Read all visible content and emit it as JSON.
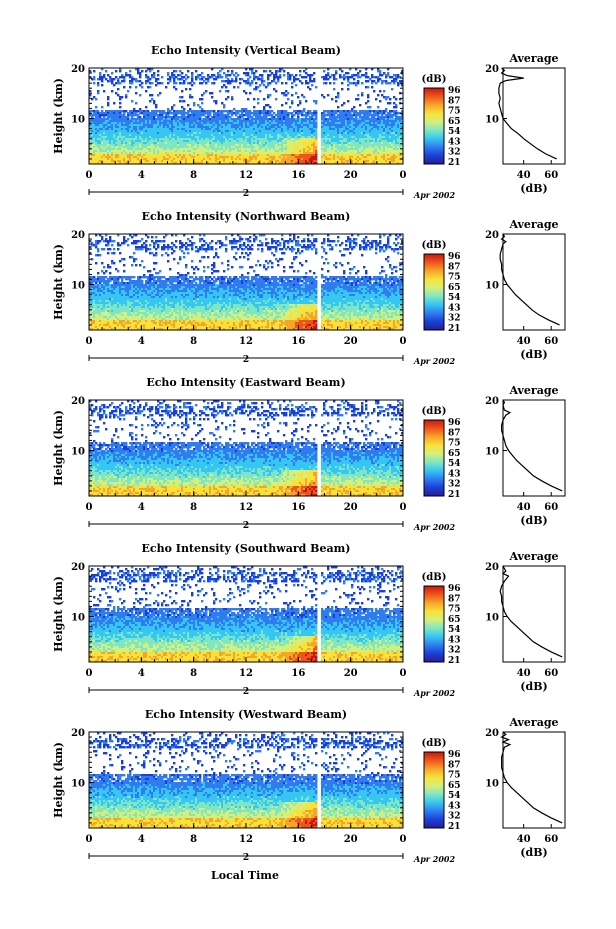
{
  "colors": {
    "colormap": [
      "#2a1c96",
      "#1a3fd6",
      "#2f7cf0",
      "#36c6f2",
      "#7fe6c4",
      "#d6ef7a",
      "#f7e23a",
      "#f7a52a",
      "#f0541c",
      "#c41a12"
    ]
  },
  "shared": {
    "ylabel": "Height (km)",
    "xlabel": "Local Time",
    "x_ticks": [
      "0",
      "4",
      "8",
      "12",
      "16",
      "20",
      "0"
    ],
    "y_ticks": [
      "20",
      "10"
    ],
    "date_marker": "2",
    "date_label": "Apr 2002",
    "colorbar_unit": "(dB)",
    "colorbar_ticks": [
      "96",
      "87",
      "75",
      "65",
      "54",
      "43",
      "32",
      "21"
    ],
    "avg_title": "Average",
    "avg_xlabel": "(dB)"
  },
  "chart_data": [
    {
      "type": "heatmap",
      "title": "Echo Intensity (Vertical Beam)",
      "xlabel": "",
      "ylabel": "Height (km)",
      "xlim_hours": [
        0,
        24
      ],
      "ylim_km": [
        1,
        20
      ],
      "colorbar_ticks": [
        "96",
        "87",
        "75",
        "65",
        "54",
        "43",
        "32",
        "21"
      ],
      "average_profile": {
        "title": "Average",
        "xlabel": "(dB)",
        "x_ticks": [
          "40",
          "60"
        ],
        "y_ticks": [
          "20",
          "10"
        ],
        "points": [
          [
            64,
            2
          ],
          [
            56,
            3
          ],
          [
            50,
            4
          ],
          [
            45,
            5
          ],
          [
            40,
            6
          ],
          [
            36,
            7
          ],
          [
            31,
            8
          ],
          [
            28,
            9
          ],
          [
            25,
            10
          ],
          [
            24,
            11
          ],
          [
            23,
            12
          ],
          [
            22,
            13
          ],
          [
            23,
            14
          ],
          [
            22,
            15
          ],
          [
            22,
            16
          ],
          [
            23,
            17
          ],
          [
            27,
            17.5
          ],
          [
            40,
            18
          ],
          [
            28,
            18.5
          ],
          [
            24,
            19
          ],
          [
            26,
            19.5
          ],
          [
            24,
            20
          ]
        ]
      }
    },
    {
      "type": "heatmap",
      "title": "Echo Intensity (Northward Beam)",
      "xlabel": "",
      "ylabel": "Height (km)",
      "xlim_hours": [
        0,
        24
      ],
      "ylim_km": [
        1,
        20
      ],
      "colorbar_ticks": [
        "96",
        "87",
        "75",
        "65",
        "54",
        "43",
        "32",
        "21"
      ],
      "average_profile": {
        "title": "Average",
        "xlabel": "(dB)",
        "x_ticks": [
          "40",
          "60"
        ],
        "y_ticks": [
          "20",
          "10"
        ],
        "points": [
          [
            66,
            2
          ],
          [
            58,
            3
          ],
          [
            51,
            4
          ],
          [
            46,
            5
          ],
          [
            42,
            6
          ],
          [
            38,
            7
          ],
          [
            34,
            8
          ],
          [
            31,
            9
          ],
          [
            28,
            10
          ],
          [
            26,
            11
          ],
          [
            25,
            12
          ],
          [
            24,
            13
          ],
          [
            24,
            14
          ],
          [
            23,
            15
          ],
          [
            23,
            16
          ],
          [
            24,
            17
          ],
          [
            25,
            18
          ],
          [
            27,
            18.5
          ],
          [
            24,
            19
          ],
          [
            26,
            19.5
          ],
          [
            25,
            20
          ]
        ]
      }
    },
    {
      "type": "heatmap",
      "title": "Echo Intensity (Eastward Beam)",
      "xlabel": "",
      "ylabel": "Height (km)",
      "xlim_hours": [
        0,
        24
      ],
      "ylim_km": [
        1,
        20
      ],
      "colorbar_ticks": [
        "96",
        "87",
        "75",
        "65",
        "54",
        "43",
        "32",
        "21"
      ],
      "average_profile": {
        "title": "Average",
        "xlabel": "(dB)",
        "x_ticks": [
          "40",
          "60"
        ],
        "y_ticks": [
          "20",
          "10"
        ],
        "points": [
          [
            68,
            2
          ],
          [
            60,
            3
          ],
          [
            53,
            4
          ],
          [
            47,
            5
          ],
          [
            43,
            6
          ],
          [
            39,
            7
          ],
          [
            35,
            8
          ],
          [
            32,
            9
          ],
          [
            29,
            10
          ],
          [
            27,
            11
          ],
          [
            26,
            12
          ],
          [
            25,
            13
          ],
          [
            24,
            14
          ],
          [
            24,
            15
          ],
          [
            25,
            16
          ],
          [
            27,
            17
          ],
          [
            30,
            17.5
          ],
          [
            26,
            18
          ],
          [
            25,
            19
          ],
          [
            26,
            19.5
          ],
          [
            25,
            20
          ]
        ]
      }
    },
    {
      "type": "heatmap",
      "title": "Echo Intensity (Southward Beam)",
      "xlabel": "",
      "ylabel": "Height (km)",
      "xlim_hours": [
        0,
        24
      ],
      "ylim_km": [
        1,
        20
      ],
      "colorbar_ticks": [
        "96",
        "87",
        "75",
        "65",
        "54",
        "43",
        "32",
        "21"
      ],
      "average_profile": {
        "title": "Average",
        "xlabel": "(dB)",
        "x_ticks": [
          "40",
          "60"
        ],
        "y_ticks": [
          "20",
          "10"
        ],
        "points": [
          [
            68,
            2
          ],
          [
            60,
            3
          ],
          [
            53,
            4
          ],
          [
            47,
            5
          ],
          [
            43,
            6
          ],
          [
            39,
            7
          ],
          [
            35,
            8
          ],
          [
            31,
            9
          ],
          [
            28,
            10
          ],
          [
            26,
            11
          ],
          [
            25,
            12
          ],
          [
            24,
            13
          ],
          [
            24,
            14
          ],
          [
            23,
            15
          ],
          [
            24,
            16
          ],
          [
            26,
            17
          ],
          [
            29,
            18
          ],
          [
            25,
            18.5
          ],
          [
            27,
            19
          ],
          [
            25,
            20
          ]
        ]
      }
    },
    {
      "type": "heatmap",
      "title": "Echo Intensity (Westward Beam)",
      "xlabel": "Local Time",
      "ylabel": "Height (km)",
      "xlim_hours": [
        0,
        24
      ],
      "ylim_km": [
        1,
        20
      ],
      "colorbar_ticks": [
        "96",
        "87",
        "75",
        "65",
        "54",
        "43",
        "32",
        "21"
      ],
      "average_profile": {
        "title": "Average",
        "xlabel": "(dB)",
        "x_ticks": [
          "40",
          "60"
        ],
        "y_ticks": [
          "20",
          "10"
        ],
        "points": [
          [
            68,
            2
          ],
          [
            60,
            3
          ],
          [
            53,
            4
          ],
          [
            47,
            5
          ],
          [
            43,
            6
          ],
          [
            39,
            7
          ],
          [
            35,
            8
          ],
          [
            31,
            9
          ],
          [
            28,
            10
          ],
          [
            26,
            11
          ],
          [
            25,
            12
          ],
          [
            24,
            13
          ],
          [
            24,
            14
          ],
          [
            24,
            15
          ],
          [
            25,
            16
          ],
          [
            26,
            17
          ],
          [
            30,
            17.5
          ],
          [
            25,
            18
          ],
          [
            29,
            18.5
          ],
          [
            24,
            19
          ],
          [
            27,
            19.5
          ],
          [
            25,
            20
          ]
        ]
      }
    }
  ]
}
